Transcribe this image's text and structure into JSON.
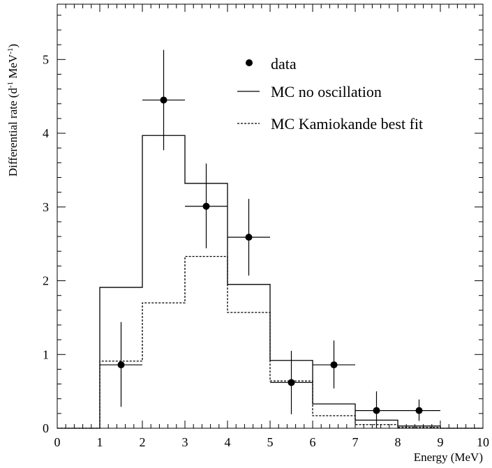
{
  "chart_data": {
    "type": "histogram",
    "xlabel": "Energy (MeV)",
    "ylabel_main": "Differential rate (d",
    "ylabel_sup1": "-1",
    "ylabel_mid": " MeV",
    "ylabel_sup2": "-1",
    "ylabel_end": ")",
    "xlim": [
      0,
      10
    ],
    "ylim": [
      0,
      5.75
    ],
    "x_ticks": [
      "0",
      "1",
      "2",
      "3",
      "4",
      "5",
      "6",
      "7",
      "8",
      "9",
      "10"
    ],
    "y_ticks": [
      "0",
      "1",
      "2",
      "3",
      "4",
      "5"
    ],
    "grid": false,
    "legend_position": "top-right",
    "legend": {
      "data": "data",
      "mc_no_osc": "MC no oscillation",
      "mc_kamiokande": "MC Kamiokande best fit"
    },
    "bin_edges": [
      0,
      1,
      2,
      3,
      4,
      5,
      6,
      7,
      8,
      9,
      10
    ],
    "series": [
      {
        "name": "MC no oscillation",
        "style": "solid",
        "values": [
          0,
          1.91,
          3.97,
          3.32,
          1.95,
          0.92,
          0.33,
          0.11,
          0.03,
          0
        ]
      },
      {
        "name": "MC Kamiokande best fit",
        "style": "dashed",
        "values": [
          0,
          0.91,
          1.7,
          2.33,
          1.57,
          0.64,
          0.17,
          0.05,
          0.01,
          0
        ]
      }
    ],
    "data_points": {
      "name": "data",
      "x": [
        1.5,
        2.5,
        3.5,
        4.5,
        5.5,
        6.5,
        7.5,
        8.5
      ],
      "y": [
        0.86,
        4.45,
        3.01,
        2.59,
        0.62,
        0.86,
        0.24,
        0.24
      ],
      "yerr_low": [
        0.57,
        0.68,
        0.57,
        0.52,
        0.43,
        0.32,
        0.24,
        0.14
      ],
      "yerr_high": [
        0.58,
        0.68,
        0.58,
        0.52,
        0.43,
        0.33,
        0.26,
        0.15
      ],
      "xerr": 0.5
    }
  }
}
